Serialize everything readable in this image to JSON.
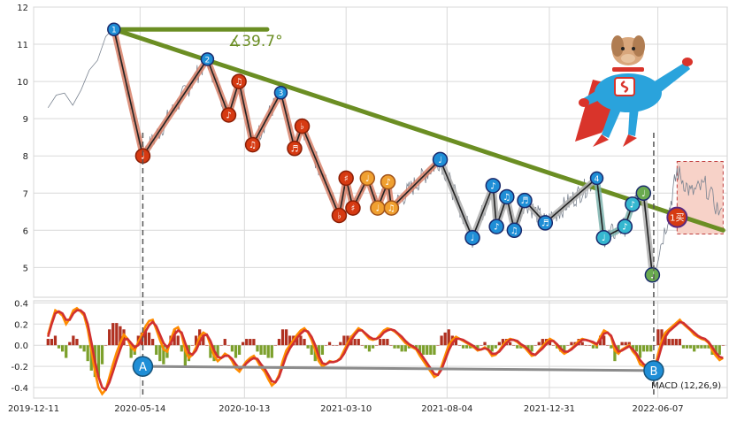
{
  "colors": {
    "background": "#ffffff",
    "grid": "#d9d9d9",
    "price_line": "#7a8390",
    "trend_line": "#6b8e23",
    "zigzag_outer": "#d9826a",
    "zigzag_inner": "#222222",
    "zigzag_grey": "#b0b0b0",
    "zigzag_teal": "#7fb5b0",
    "marker_blue": "#1f8ed6",
    "marker_red": "#d63a12",
    "marker_orange": "#f0a030",
    "marker_cyan": "#35b7d0",
    "marker_green": "#6aaa50",
    "macd_fast": "#ff8c00",
    "macd_slow": "#d03030",
    "hist_pos": "#b03020",
    "hist_neg": "#7ca02c",
    "divergence": "#8c8c8c",
    "box_fill": "#f7d2c8",
    "box_stroke": "#c04040"
  },
  "chart_data": [
    {
      "type": "line",
      "name": "price",
      "x_ticks": [
        "2019-12-11",
        "2020-05-14",
        "2020-10-13",
        "2021-03-10",
        "2021-08-04",
        "2021-12-31",
        "2022-06-07"
      ],
      "y_ticks": [
        5,
        6,
        7,
        8,
        9,
        10,
        11,
        12
      ],
      "ylim": [
        4.2,
        12
      ],
      "xlim": [
        "2019-12-11",
        "2022-09-16"
      ],
      "grid": true,
      "zigzag": [
        {
          "date": "2020-04-06",
          "value": 11.4,
          "marker": "1",
          "kind": "blue"
        },
        {
          "date": "2020-05-18",
          "value": 8.0,
          "marker": "♩",
          "kind": "red"
        },
        {
          "date": "2020-08-20",
          "value": 10.6,
          "marker": "2",
          "kind": "blue"
        },
        {
          "date": "2020-09-20",
          "value": 9.1,
          "marker": "♪",
          "kind": "red"
        },
        {
          "date": "2020-10-05",
          "value": 10.0,
          "marker": "♫",
          "kind": "red"
        },
        {
          "date": "2020-10-25",
          "value": 8.3,
          "marker": "♫",
          "kind": "red"
        },
        {
          "date": "2020-12-05",
          "value": 9.7,
          "marker": "3",
          "kind": "blue"
        },
        {
          "date": "2020-12-25",
          "value": 8.2,
          "marker": "♬",
          "kind": "red"
        },
        {
          "date": "2021-01-05",
          "value": 8.8,
          "marker": "♭",
          "kind": "red"
        },
        {
          "date": "2021-02-28",
          "value": 6.4,
          "marker": "♭",
          "kind": "red"
        },
        {
          "date": "2021-03-10",
          "value": 7.4,
          "marker": "♯",
          "kind": "red"
        },
        {
          "date": "2021-03-20",
          "value": 6.6,
          "marker": "♯",
          "kind": "red"
        },
        {
          "date": "2021-04-10",
          "value": 7.4,
          "marker": "♩",
          "kind": "orange"
        },
        {
          "date": "2021-04-25",
          "value": 6.6,
          "marker": "♩",
          "kind": "orange"
        },
        {
          "date": "2021-05-10",
          "value": 7.3,
          "marker": "♪",
          "kind": "orange"
        },
        {
          "date": "2021-05-15",
          "value": 6.6,
          "marker": "♫",
          "kind": "orange"
        },
        {
          "date": "2021-07-25",
          "value": 7.9,
          "marker": "♩",
          "kind": "blue"
        },
        {
          "date": "2021-09-10",
          "value": 5.8,
          "marker": "♩",
          "kind": "blue"
        },
        {
          "date": "2021-10-10",
          "value": 7.2,
          "marker": "♪",
          "kind": "blue"
        },
        {
          "date": "2021-10-15",
          "value": 6.1,
          "marker": "♪",
          "kind": "blue"
        },
        {
          "date": "2021-10-30",
          "value": 6.9,
          "marker": "♫",
          "kind": "blue"
        },
        {
          "date": "2021-11-10",
          "value": 6.0,
          "marker": "♫",
          "kind": "blue"
        },
        {
          "date": "2021-11-25",
          "value": 6.8,
          "marker": "♬",
          "kind": "blue"
        },
        {
          "date": "2021-12-25",
          "value": 6.2,
          "marker": "♬",
          "kind": "blue"
        },
        {
          "date": "2022-03-10",
          "value": 7.4,
          "marker": "4",
          "kind": "blue"
        },
        {
          "date": "2022-03-20",
          "value": 5.8,
          "marker": "♩",
          "kind": "cyan"
        },
        {
          "date": "2022-04-20",
          "value": 6.1,
          "marker": "♪",
          "kind": "cyan"
        },
        {
          "date": "2022-05-01",
          "value": 6.7,
          "marker": "♪",
          "kind": "cyan"
        },
        {
          "date": "2022-05-17",
          "value": 7.0,
          "marker": "♩",
          "kind": "green"
        },
        {
          "date": "2022-05-30",
          "value": 4.8,
          "marker": "♩",
          "kind": "green"
        }
      ],
      "trendline": {
        "start": {
          "date": "2020-04-06",
          "value": 11.4
        },
        "end": {
          "date": "2022-09-10",
          "value": 6.0
        },
        "angle_label": "∡39.7°"
      },
      "resistance_segment": {
        "start": {
          "date": "2020-04-06",
          "value": 11.4
        },
        "end": {
          "date": "2020-11-15",
          "value": 11.4
        }
      },
      "buy_marker": {
        "date": "2022-07-05",
        "value": 6.35,
        "label": "1买"
      },
      "highlight_box": {
        "start": "2022-07-05",
        "end": "2022-09-10",
        "top": 7.85,
        "bottom": 5.9
      }
    },
    {
      "type": "line",
      "name": "MACD",
      "label": "MACD (12,26,9)",
      "y_ticks": [
        0.4,
        0.2,
        0.0,
        -0.2,
        -0.4
      ],
      "ylim": [
        -0.5,
        0.42
      ],
      "grid": true,
      "vlines": [
        "2020-05-18",
        "2022-06-01"
      ],
      "divergence": [
        {
          "label": "A",
          "date": "2020-05-18",
          "value": -0.2
        },
        {
          "label": "B",
          "date": "2022-06-01",
          "value": -0.24
        }
      ],
      "series_dates_start": "2020-01-01",
      "series_dates_end": "2022-09-10",
      "macd": [
        0.1,
        0.22,
        0.33,
        0.31,
        0.28,
        0.2,
        0.25,
        0.33,
        0.35,
        0.32,
        0.28,
        0.15,
        -0.05,
        -0.25,
        -0.4,
        -0.46,
        -0.42,
        -0.3,
        -0.18,
        -0.07,
        0.02,
        0.1,
        0.06,
        -0.02,
        -0.05,
        0.03,
        0.1,
        0.18,
        0.23,
        0.24,
        0.15,
        0.05,
        -0.04,
        -0.06,
        0.05,
        0.15,
        0.17,
        0.1,
        -0.05,
        -0.12,
        -0.09,
        -0.02,
        0.08,
        0.12,
        0.1,
        0.0,
        -0.1,
        -0.15,
        -0.12,
        -0.08,
        -0.1,
        -0.15,
        -0.22,
        -0.25,
        -0.2,
        -0.15,
        -0.12,
        -0.1,
        -0.15,
        -0.21,
        -0.25,
        -0.32,
        -0.38,
        -0.35,
        -0.28,
        -0.15,
        -0.05,
        0.0,
        0.05,
        0.1,
        0.14,
        0.16,
        0.12,
        0.05,
        -0.05,
        -0.15,
        -0.2,
        -0.18,
        -0.15,
        -0.16,
        -0.15,
        -0.12,
        -0.05,
        0.02,
        0.08,
        0.12,
        0.16,
        0.14,
        0.1,
        0.06,
        0.05,
        0.06,
        0.1,
        0.14,
        0.16,
        0.15,
        0.13,
        0.1,
        0.06,
        0.02,
        0.0,
        -0.02,
        -0.04,
        -0.1,
        -0.15,
        -0.2,
        -0.25,
        -0.3,
        -0.28,
        -0.2,
        -0.1,
        0.0,
        0.05,
        0.08,
        0.06,
        0.04,
        0.02,
        0.0,
        -0.02,
        -0.05,
        -0.04,
        -0.02,
        -0.05,
        -0.1,
        -0.09,
        -0.05,
        0.0,
        0.04,
        0.06,
        0.05,
        0.03,
        0.0,
        -0.02,
        -0.06,
        -0.1,
        -0.09,
        -0.05,
        -0.01,
        0.03,
        0.06,
        0.04,
        0.0,
        -0.05,
        -0.08,
        -0.06,
        -0.03,
        0.0,
        0.04,
        0.06,
        0.05,
        0.04,
        0.02,
        0.0,
        0.08,
        0.14,
        0.12,
        0.08,
        -0.05,
        -0.08,
        -0.04,
        -0.02,
        0.0,
        -0.06,
        -0.1,
        -0.18,
        -0.2,
        -0.22,
        -0.26,
        -0.24,
        -0.08,
        0.04,
        0.12,
        0.15,
        0.18,
        0.21,
        0.24,
        0.2,
        0.17,
        0.14,
        0.1,
        0.08,
        0.06,
        0.05,
        0.02,
        -0.05,
        -0.1,
        -0.14,
        -0.12
      ],
      "signal": [
        0.08,
        0.2,
        0.3,
        0.32,
        0.3,
        0.24,
        0.24,
        0.3,
        0.33,
        0.33,
        0.3,
        0.2,
        0.03,
        -0.15,
        -0.3,
        -0.4,
        -0.42,
        -0.35,
        -0.25,
        -0.14,
        -0.04,
        0.05,
        0.06,
        0.02,
        -0.02,
        0.0,
        0.06,
        0.13,
        0.19,
        0.22,
        0.18,
        0.1,
        0.02,
        -0.02,
        0.02,
        0.1,
        0.14,
        0.12,
        0.02,
        -0.07,
        -0.09,
        -0.05,
        0.03,
        0.09,
        0.1,
        0.04,
        -0.05,
        -0.11,
        -0.12,
        -0.1,
        -0.1,
        -0.13,
        -0.18,
        -0.22,
        -0.21,
        -0.17,
        -0.14,
        -0.12,
        -0.13,
        -0.18,
        -0.22,
        -0.28,
        -0.34,
        -0.35,
        -0.3,
        -0.2,
        -0.1,
        -0.03,
        0.02,
        0.07,
        0.11,
        0.14,
        0.13,
        0.08,
        0.0,
        -0.1,
        -0.17,
        -0.18,
        -0.16,
        -0.16,
        -0.15,
        -0.13,
        -0.08,
        -0.01,
        0.05,
        0.1,
        0.14,
        0.14,
        0.11,
        0.08,
        0.06,
        0.06,
        0.08,
        0.12,
        0.14,
        0.15,
        0.14,
        0.11,
        0.08,
        0.04,
        0.01,
        -0.01,
        -0.03,
        -0.07,
        -0.12,
        -0.17,
        -0.22,
        -0.27,
        -0.28,
        -0.23,
        -0.14,
        -0.05,
        0.02,
        0.06,
        0.06,
        0.05,
        0.03,
        0.01,
        -0.01,
        -0.04,
        -0.04,
        -0.03,
        -0.04,
        -0.08,
        -0.08,
        -0.06,
        -0.02,
        0.02,
        0.05,
        0.05,
        0.04,
        0.01,
        -0.01,
        -0.04,
        -0.08,
        -0.09,
        -0.06,
        -0.03,
        0.01,
        0.04,
        0.04,
        0.01,
        -0.03,
        -0.06,
        -0.06,
        -0.04,
        -0.01,
        0.02,
        0.05,
        0.05,
        0.04,
        0.03,
        0.01,
        0.05,
        0.11,
        0.12,
        0.09,
        0.0,
        -0.06,
        -0.05,
        -0.03,
        -0.01,
        -0.04,
        -0.08,
        -0.14,
        -0.18,
        -0.2,
        -0.24,
        -0.24,
        -0.13,
        -0.01,
        0.08,
        0.13,
        0.16,
        0.19,
        0.22,
        0.21,
        0.18,
        0.15,
        0.12,
        0.09,
        0.07,
        0.06,
        0.03,
        -0.02,
        -0.07,
        -0.11,
        -0.12
      ]
    }
  ]
}
